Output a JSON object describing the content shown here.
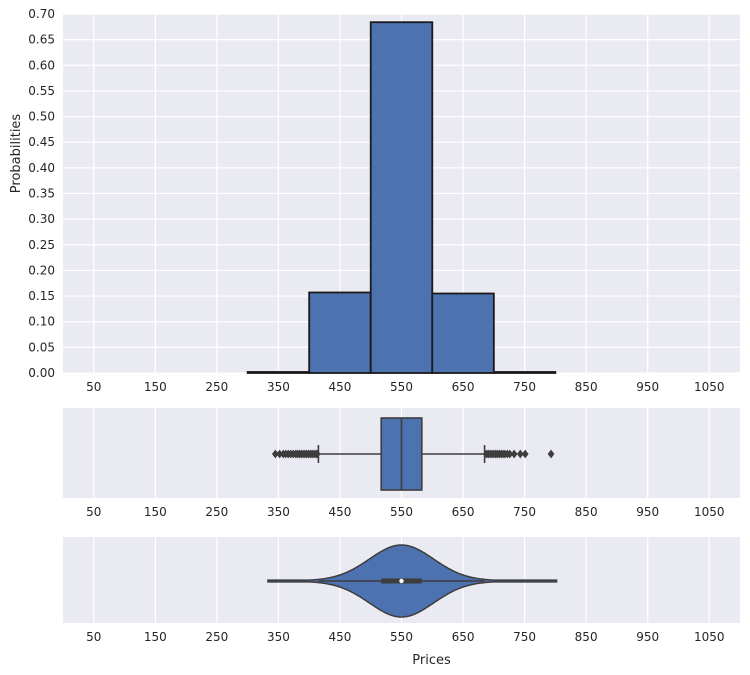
{
  "chart_data": [
    {
      "type": "bar",
      "subtype": "histogram",
      "ylabel": "Probabilities",
      "xlim": [
        0,
        1100
      ],
      "ylim": [
        0,
        0.7
      ],
      "xticks": [
        50,
        150,
        250,
        350,
        450,
        550,
        650,
        750,
        850,
        950,
        1050
      ],
      "yticks": [
        "0.00",
        "0.05",
        "0.10",
        "0.15",
        "0.20",
        "0.25",
        "0.30",
        "0.35",
        "0.40",
        "0.45",
        "0.50",
        "0.55",
        "0.60",
        "0.65",
        "0.70"
      ],
      "bins": [
        {
          "from": 300,
          "to": 400,
          "value": 0.002
        },
        {
          "from": 400,
          "to": 500,
          "value": 0.157
        },
        {
          "from": 500,
          "to": 600,
          "value": 0.684
        },
        {
          "from": 600,
          "to": 700,
          "value": 0.155
        },
        {
          "from": 700,
          "to": 800,
          "value": 0.002
        }
      ],
      "color": "#4c72b0",
      "grid": true
    },
    {
      "type": "boxplot",
      "xlim": [
        0,
        1100
      ],
      "xticks": [
        50,
        150,
        250,
        350,
        450,
        550,
        650,
        750,
        850,
        950,
        1050
      ],
      "whisker_low": 415,
      "q1": 517,
      "median": 550,
      "q3": 583,
      "whisker_high": 685,
      "outliers": [
        345,
        352,
        358,
        362,
        366,
        370,
        374,
        378,
        381,
        384,
        387,
        390,
        393,
        396,
        399,
        402,
        405,
        408,
        411,
        413,
        688,
        691,
        694,
        697,
        700,
        703,
        706,
        709,
        712,
        715,
        718,
        722,
        726,
        733,
        743,
        751,
        793
      ],
      "color": "#4c72b0"
    },
    {
      "type": "violin",
      "xlim": [
        0,
        1100
      ],
      "xticks": [
        50,
        150,
        250,
        350,
        450,
        550,
        650,
        750,
        850,
        950,
        1050
      ],
      "xlabel": "Prices",
      "range": [
        333,
        802
      ],
      "mean": 550,
      "sd": 52,
      "inner_box": {
        "q1": 517,
        "median": 550,
        "q3": 583,
        "whisker_low": 415,
        "whisker_high": 685
      },
      "color": "#4c72b0"
    }
  ],
  "style": {
    "axes_bg": "#eaeaf2",
    "grid_color": "#ffffff",
    "bar_color": "#4c72b0",
    "edge_color": "#1a1a1a",
    "box_line_color": "#3d3d3d"
  }
}
